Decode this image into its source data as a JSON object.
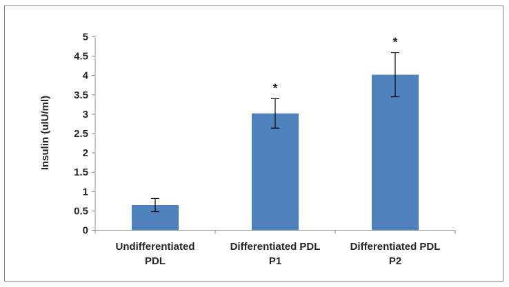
{
  "chart_data": {
    "type": "bar",
    "title": "",
    "xlabel": "",
    "ylabel": "Insulin (uIU/ml)",
    "categories": [
      [
        "Undifferentiated",
        "PDL"
      ],
      [
        "Differentiated PDL",
        "P1"
      ],
      [
        "Differentiated PDL",
        "P2"
      ]
    ],
    "values": [
      0.65,
      3.02,
      4.02
    ],
    "errors": [
      0.17,
      0.38,
      0.57
    ],
    "annotations": [
      "",
      "*",
      "*"
    ],
    "ylim": [
      0,
      5
    ],
    "yticks": [
      "0",
      "0.5",
      "1",
      "1.5",
      "2",
      "2.5",
      "3",
      "3.5",
      "4",
      "4.5",
      "5"
    ],
    "grid": false,
    "legend": "none",
    "bar_color": "#4f81bd"
  }
}
